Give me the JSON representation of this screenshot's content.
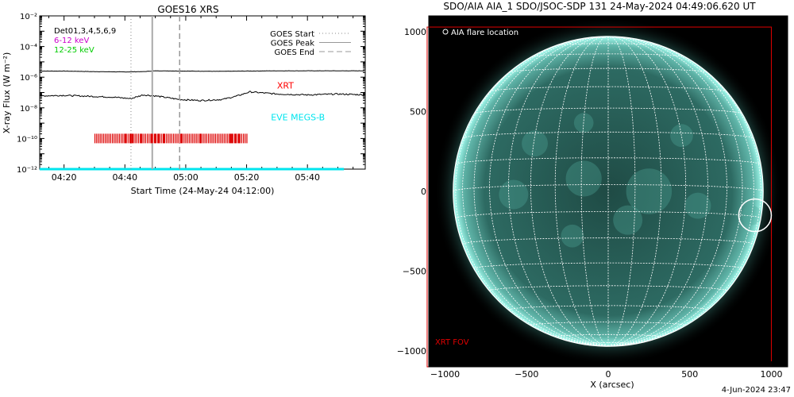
{
  "chart_data": [
    {
      "type": "line",
      "title": "GOES16 XRS",
      "xlabel": "Start Time (24-May-24 04:12:00)",
      "ylabel": "X-ray Flux (W m⁻²)",
      "y_scale": "log",
      "ylim": [
        1e-12,
        0.01
      ],
      "xlim": [
        "04:12",
        "05:59"
      ],
      "x_ticks": [
        "04:20",
        "04:40",
        "05:00",
        "05:20",
        "05:40"
      ],
      "y_ticks": [
        {
          "value": 1e-12,
          "label": "10⁻¹²"
        },
        {
          "value": 1e-10,
          "label": "10⁻¹⁰"
        },
        {
          "value": 1e-08,
          "label": "10⁻⁸"
        },
        {
          "value": 1e-06,
          "label": "10⁻⁶"
        },
        {
          "value": 0.0001,
          "label": "10⁻⁴"
        },
        {
          "value": 0.01,
          "label": "10⁻²"
        }
      ],
      "det_labels": [
        {
          "text": "Det01,3,4,5,6,9",
          "color": "#000000"
        },
        {
          "text": "6-12 keV",
          "color": "#cc00cc"
        },
        {
          "text": "12-25 keV",
          "color": "#00cc00"
        }
      ],
      "legend": {
        "placement": "top-right",
        "entries": [
          {
            "label": "GOES Start",
            "style": "dotted"
          },
          {
            "label": "GOES Peak",
            "style": "solid"
          },
          {
            "label": "GOES End",
            "style": "dashed"
          }
        ]
      },
      "series": [
        {
          "name": "GOES long channel",
          "color": "#000000",
          "x": [
            "04:12",
            "04:20",
            "04:30",
            "04:40",
            "04:46",
            "04:50",
            "05:00",
            "05:10",
            "05:20",
            "05:30",
            "05:40",
            "05:59"
          ],
          "y": [
            2.5e-06,
            2.5e-06,
            2.3e-06,
            2.2e-06,
            2.3e-06,
            2.6e-06,
            2.5e-06,
            2.4e-06,
            2.5e-06,
            2.6e-06,
            2.6e-06,
            2.6e-06
          ]
        },
        {
          "name": "GOES short channel",
          "color": "#000000",
          "x": [
            "04:12",
            "04:20",
            "04:30",
            "04:36",
            "04:42",
            "04:46",
            "04:50",
            "04:58",
            "05:05",
            "05:12",
            "05:17",
            "05:21",
            "05:30",
            "05:40",
            "05:50",
            "05:59"
          ],
          "y": [
            6e-08,
            6.5e-08,
            5.5e-08,
            5e-08,
            4e-08,
            7e-08,
            6e-08,
            3.5e-08,
            3e-08,
            3.5e-08,
            6e-08,
            1.1e-07,
            8e-08,
            7e-08,
            8e-08,
            7e-08
          ]
        },
        {
          "name": "EVE MEGS-B",
          "color": "#00e5ee",
          "x": [
            "04:12",
            "05:59"
          ],
          "y": [
            1e-12,
            1e-12
          ]
        }
      ],
      "annotations": [
        {
          "text": "XRT",
          "color": "#ff0000",
          "x": "05:30",
          "y": 3e-07
        },
        {
          "text": "EVE MEGS-B",
          "color": "#00e5ee",
          "x": "05:28",
          "y": 2.5e-09
        }
      ],
      "events": {
        "start": "04:42",
        "peak": "04:49",
        "end": "04:58"
      },
      "xrt_obs_range": [
        "04:30",
        "05:20"
      ],
      "xrt_obs_y": 1e-10
    },
    {
      "type": "image",
      "title": "SDO/AIA AIA_1 SDO/JSOC-SDP 131 24-May-2024 04:49:06.620 UT",
      "xlabel": "X (arcsec)",
      "ylabel": "",
      "xlim": [
        -1100,
        1100
      ],
      "ylim": [
        -1100,
        1100
      ],
      "x_ticks": [
        -1000,
        -500,
        0,
        500,
        1000
      ],
      "y_ticks": [
        -1000,
        -500,
        0,
        500,
        1000
      ],
      "solar_radius_arcsec": 950,
      "grid_spacing_deg": 10,
      "legend_text": "AIA flare location",
      "flare_location": {
        "x": 900,
        "y": -150,
        "radius": 100
      },
      "fov_label": "XRT FOV",
      "fov_box": {
        "x0": -1110,
        "x1": 1000,
        "y0": -1100,
        "y1": 1030
      },
      "colors": {
        "disk": "#2f6b63",
        "limb": "#8ff2e6",
        "grid": "#ffffff",
        "fov": "#e00000"
      }
    }
  ],
  "footer": {
    "timestamp": "4-Jun-2024 23:47"
  }
}
